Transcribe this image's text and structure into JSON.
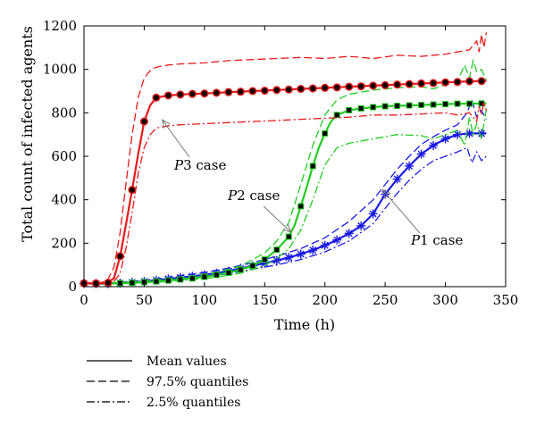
{
  "chart_data": {
    "type": "line",
    "xlabel": "Time (h)",
    "ylabel": "Total count of infected agents",
    "xlim": [
      0,
      350
    ],
    "ylim": [
      0,
      1200
    ],
    "xticks": [
      "0",
      "50",
      "100",
      "150",
      "200",
      "250",
      "300",
      "350"
    ],
    "yticks": [
      "0",
      "200",
      "400",
      "600",
      "800",
      "1000",
      "1200"
    ],
    "colors": {
      "P1": "#1a1ae6",
      "P2": "#22cc22",
      "P3": "#e61a1a",
      "axis": "#000000"
    },
    "series": [
      {
        "name": "P1 case",
        "key": "P1",
        "mean": {
          "x": [
            0,
            10,
            20,
            30,
            40,
            50,
            60,
            70,
            80,
            90,
            100,
            110,
            120,
            130,
            140,
            150,
            160,
            170,
            180,
            190,
            200,
            210,
            220,
            230,
            240,
            250,
            260,
            270,
            280,
            290,
            300,
            310,
            320,
            330,
            334
          ],
          "y": [
            15,
            14,
            14,
            17,
            20,
            24,
            30,
            36,
            42,
            48,
            55,
            62,
            72,
            84,
            96,
            108,
            120,
            134,
            150,
            168,
            190,
            215,
            245,
            280,
            335,
            425,
            495,
            555,
            610,
            650,
            680,
            700,
            705,
            705,
            705
          ]
        },
        "markers": {
          "x": [
            0,
            10,
            20,
            30,
            40,
            50,
            60,
            70,
            80,
            90,
            100,
            110,
            120,
            130,
            140,
            150,
            160,
            170,
            180,
            190,
            200,
            210,
            220,
            230,
            240,
            250,
            260,
            270,
            280,
            290,
            300,
            310,
            320,
            330
          ],
          "y": [
            15,
            14,
            14,
            17,
            20,
            24,
            30,
            36,
            42,
            48,
            55,
            62,
            72,
            84,
            96,
            108,
            120,
            134,
            150,
            168,
            190,
            215,
            245,
            280,
            335,
            425,
            495,
            555,
            610,
            650,
            680,
            700,
            705,
            705
          ]
        },
        "upper": {
          "x": [
            0,
            20,
            40,
            60,
            80,
            100,
            120,
            140,
            160,
            180,
            200,
            220,
            240,
            250,
            260,
            270,
            280,
            290,
            300,
            310,
            318,
            322,
            326,
            330,
            334
          ],
          "y": [
            17,
            17,
            24,
            36,
            50,
            65,
            85,
            110,
            140,
            175,
            225,
            300,
            400,
            470,
            540,
            600,
            655,
            690,
            720,
            745,
            800,
            860,
            780,
            810,
            770
          ]
        },
        "lower": {
          "x": [
            0,
            20,
            40,
            60,
            80,
            100,
            120,
            140,
            160,
            180,
            200,
            220,
            240,
            250,
            260,
            270,
            280,
            290,
            300,
            310,
            318,
            322,
            326,
            330,
            334
          ],
          "y": [
            13,
            12,
            16,
            24,
            34,
            45,
            60,
            80,
            100,
            125,
            160,
            210,
            290,
            360,
            430,
            490,
            540,
            580,
            600,
            620,
            640,
            570,
            620,
            580,
            600
          ]
        }
      },
      {
        "name": "P2 case",
        "key": "P2",
        "mean": {
          "x": [
            0,
            20,
            40,
            60,
            80,
            100,
            110,
            120,
            130,
            140,
            150,
            160,
            170,
            175,
            180,
            185,
            190,
            195,
            200,
            205,
            210,
            220,
            230,
            240,
            250,
            260,
            270,
            280,
            290,
            300,
            310,
            320,
            330,
            334
          ],
          "y": [
            15,
            14,
            18,
            24,
            33,
            45,
            54,
            64,
            78,
            96,
            125,
            170,
            230,
            285,
            370,
            460,
            555,
            640,
            705,
            760,
            790,
            812,
            820,
            826,
            830,
            832,
            834,
            836,
            838,
            840,
            842,
            842,
            843,
            843
          ]
        },
        "markers": {
          "x": [
            0,
            10,
            20,
            30,
            40,
            50,
            60,
            70,
            80,
            90,
            100,
            110,
            120,
            130,
            140,
            150,
            160,
            170,
            180,
            190,
            200,
            210,
            220,
            230,
            240,
            250,
            260,
            270,
            280,
            290,
            300,
            310,
            320,
            330
          ],
          "y": [
            15,
            14,
            14,
            16,
            18,
            21,
            24,
            28,
            33,
            38,
            45,
            54,
            64,
            78,
            96,
            125,
            170,
            230,
            370,
            555,
            705,
            790,
            812,
            820,
            826,
            830,
            832,
            834,
            836,
            838,
            840,
            842,
            842,
            843
          ]
        },
        "upper": {
          "x": [
            0,
            40,
            80,
            110,
            130,
            150,
            160,
            170,
            180,
            190,
            200,
            210,
            220,
            240,
            260,
            280,
            290,
            300,
            310,
            316,
            320,
            323,
            326,
            330,
            334
          ],
          "y": [
            17,
            21,
            40,
            66,
            95,
            155,
            210,
            295,
            470,
            650,
            790,
            860,
            885,
            905,
            915,
            920,
            910,
            930,
            945,
            1020,
            960,
            1040,
            990,
            1000,
            950
          ]
        },
        "lower": {
          "x": [
            0,
            40,
            80,
            110,
            130,
            150,
            160,
            170,
            180,
            190,
            200,
            210,
            220,
            240,
            260,
            280,
            290,
            300,
            310,
            316,
            320,
            323,
            326,
            330,
            334
          ],
          "y": [
            13,
            15,
            27,
            43,
            62,
            98,
            130,
            175,
            260,
            400,
            560,
            640,
            660,
            680,
            700,
            695,
            680,
            700,
            720,
            650,
            780,
            700,
            750,
            680,
            820
          ]
        }
      },
      {
        "name": "P3 case",
        "key": "P3",
        "mean": {
          "x": [
            0,
            10,
            20,
            25,
            30,
            35,
            40,
            45,
            50,
            55,
            60,
            70,
            80,
            90,
            100,
            120,
            140,
            160,
            180,
            200,
            220,
            240,
            260,
            280,
            300,
            320,
            334
          ],
          "y": [
            15,
            15,
            18,
            40,
            140,
            290,
            445,
            610,
            760,
            835,
            870,
            880,
            884,
            887,
            889,
            895,
            900,
            905,
            910,
            915,
            920,
            925,
            930,
            935,
            940,
            945,
            947
          ]
        },
        "markers": {
          "x": [
            0,
            10,
            20,
            30,
            40,
            50,
            60,
            70,
            80,
            90,
            100,
            110,
            120,
            130,
            140,
            150,
            160,
            170,
            180,
            190,
            200,
            210,
            220,
            230,
            240,
            250,
            260,
            270,
            280,
            290,
            300,
            310,
            320,
            330
          ],
          "y": [
            15,
            15,
            18,
            140,
            445,
            760,
            870,
            880,
            884,
            887,
            889,
            892,
            895,
            897,
            900,
            902,
            905,
            907,
            910,
            912,
            915,
            917,
            920,
            922,
            925,
            927,
            930,
            932,
            935,
            937,
            940,
            942,
            945,
            946
          ]
        },
        "upper": {
          "x": [
            0,
            15,
            20,
            25,
            30,
            35,
            40,
            45,
            50,
            55,
            60,
            70,
            80,
            100,
            120,
            140,
            160,
            180,
            200,
            220,
            240,
            260,
            280,
            300,
            310,
            320,
            326,
            328,
            330,
            332,
            334
          ],
          "y": [
            17,
            20,
            35,
            90,
            250,
            480,
            700,
            870,
            960,
            995,
            1010,
            1020,
            1025,
            1030,
            1040,
            1045,
            1050,
            1055,
            1050,
            1060,
            1050,
            1065,
            1060,
            1070,
            1080,
            1090,
            1130,
            1080,
            1160,
            1100,
            1170
          ]
        },
        "lower": {
          "x": [
            0,
            15,
            20,
            25,
            30,
            35,
            40,
            45,
            50,
            55,
            60,
            70,
            80,
            100,
            120,
            140,
            160,
            180,
            200,
            220,
            240,
            260,
            280,
            300,
            310,
            320,
            326,
            328,
            330,
            332,
            334
          ],
          "y": [
            13,
            15,
            16,
            25,
            60,
            180,
            340,
            520,
            640,
            700,
            730,
            740,
            745,
            750,
            755,
            760,
            765,
            770,
            775,
            780,
            790,
            790,
            795,
            800,
            790,
            800,
            760,
            830,
            790,
            850,
            810
          ]
        }
      }
    ],
    "annotations": [
      {
        "prefix": "P",
        "num": "3",
        "suffix": " case",
        "target_x": 65,
        "target_y": 768
      },
      {
        "prefix": "P",
        "num": "2",
        "suffix": " case",
        "target_x": 172,
        "target_y": 250
      },
      {
        "prefix": "P",
        "num": "1",
        "suffix": " case",
        "target_x": 248,
        "target_y": 445
      }
    ],
    "legend": [
      {
        "label": "Mean values",
        "style": "solid"
      },
      {
        "label": "97.5% quantiles",
        "style": "dashed"
      },
      {
        "label": "2.5% quantiles",
        "style": "dashdot"
      }
    ]
  }
}
